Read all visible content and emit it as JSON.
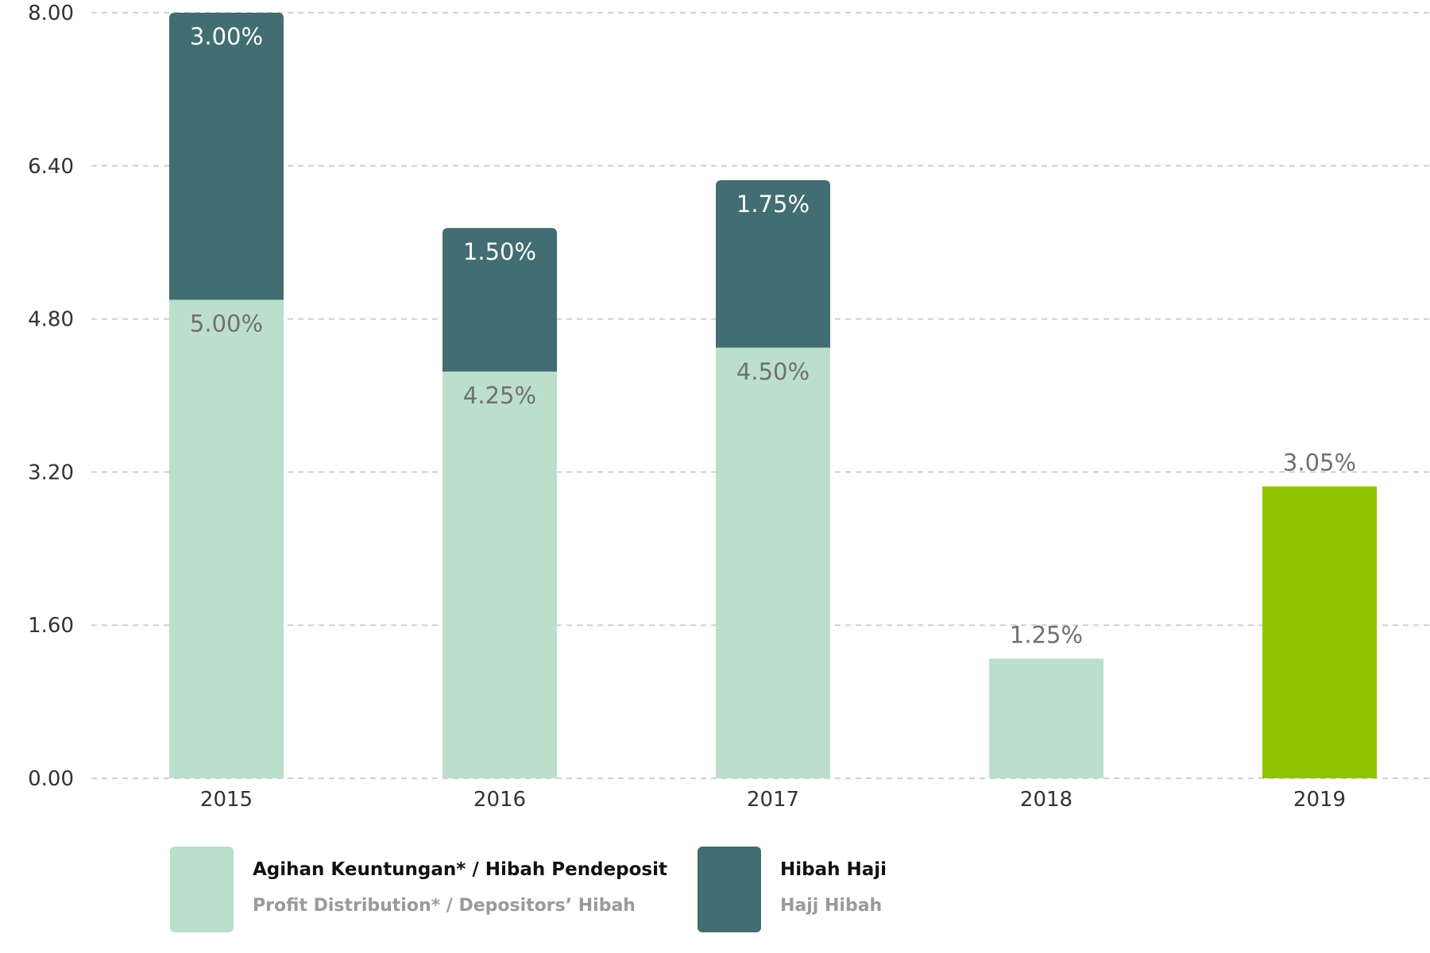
{
  "chart_data": {
    "type": "bar",
    "stacked": true,
    "categories": [
      "2015",
      "2016",
      "2017",
      "2018",
      "2019"
    ],
    "ylim": [
      0,
      8
    ],
    "yticks": [
      "0.00",
      "1.60",
      "3.20",
      "4.80",
      "6.40",
      "8.00"
    ],
    "grid": true,
    "legend_placement": "bottom",
    "series": [
      {
        "name": "Agihan Keuntungan* / Hibah Pendeposit",
        "name_secondary": "Profit Distribution* / Depositors’ Hibah",
        "color": "#bbdfcb",
        "values": [
          5.0,
          4.25,
          4.5,
          1.25,
          3.05
        ],
        "labels": [
          "5.00%",
          "4.25%",
          "4.50%",
          "1.25%",
          "3.05%"
        ],
        "point_colors": [
          null,
          null,
          null,
          null,
          "#8fc400"
        ]
      },
      {
        "name": "Hibah Haji",
        "name_secondary": "Hajj Hibah",
        "color": "#426d72",
        "values": [
          3.0,
          1.5,
          1.75,
          0,
          0
        ],
        "labels": [
          "3.00%",
          "1.50%",
          "1.75%",
          "",
          ""
        ]
      }
    ]
  }
}
